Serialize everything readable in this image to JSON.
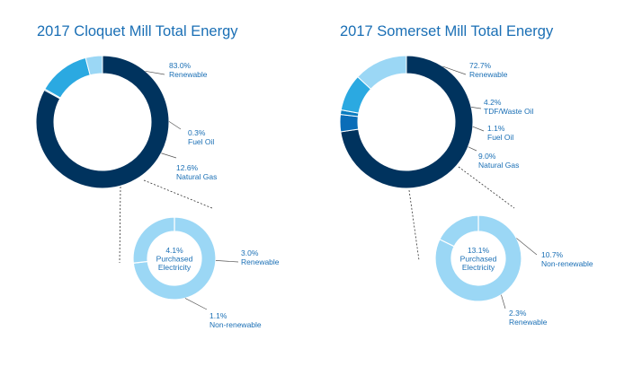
{
  "colors": {
    "renewable": "#00335e",
    "fuel_oil": "#0a7cc1",
    "natural_gas": "#2ba9e1",
    "tdf": "#0a6db8",
    "purchased": "#9bd7f5",
    "label_text": "#1a6fb5"
  },
  "chart_data": [
    {
      "type": "pie",
      "title": "2017 Cloquet Mill Total Energy",
      "slices": [
        {
          "pct": "83.0%",
          "label": "Renewable",
          "value": 83.0,
          "color": "#00335e"
        },
        {
          "pct": "0.3%",
          "label": "Fuel Oil",
          "value": 0.3,
          "color": "#0a7cc1"
        },
        {
          "pct": "12.6%",
          "label": "Natural Gas",
          "value": 12.6,
          "color": "#2ba9e1"
        },
        {
          "pct": "4.1%",
          "label": "Purchased Electricity",
          "value": 4.1,
          "color": "#9bd7f5"
        }
      ],
      "breakdown": {
        "center_pct": "4.1%",
        "center_label": [
          "Purchased",
          "Electricity"
        ],
        "slices": [
          {
            "pct": "3.0%",
            "label": "Renewable",
            "value": 3.0
          },
          {
            "pct": "1.1%",
            "label": "Non-renewable",
            "value": 1.1
          }
        ]
      }
    },
    {
      "type": "pie",
      "title": "2017 Somerset Mill Total Energy",
      "slices": [
        {
          "pct": "72.7%",
          "label": "Renewable",
          "value": 72.7,
          "color": "#00335e"
        },
        {
          "pct": "4.2%",
          "label": "TDF/Waste Oil",
          "value": 4.2,
          "color": "#0a6db8"
        },
        {
          "pct": "1.1%",
          "label": "Fuel Oil",
          "value": 1.1,
          "color": "#0a7cc1"
        },
        {
          "pct": "9.0%",
          "label": "Natural Gas",
          "value": 9.0,
          "color": "#2ba9e1"
        },
        {
          "pct": "13.1%",
          "label": "Purchased Electricity",
          "value": 13.1,
          "color": "#9bd7f5"
        }
      ],
      "breakdown": {
        "center_pct": "13.1%",
        "center_label": [
          "Purchased",
          "Electricity"
        ],
        "slices": [
          {
            "pct": "10.7%",
            "label": "Non-renewable",
            "value": 10.7
          },
          {
            "pct": "2.3%",
            "label": "Renewable",
            "value": 2.3
          }
        ]
      }
    }
  ]
}
